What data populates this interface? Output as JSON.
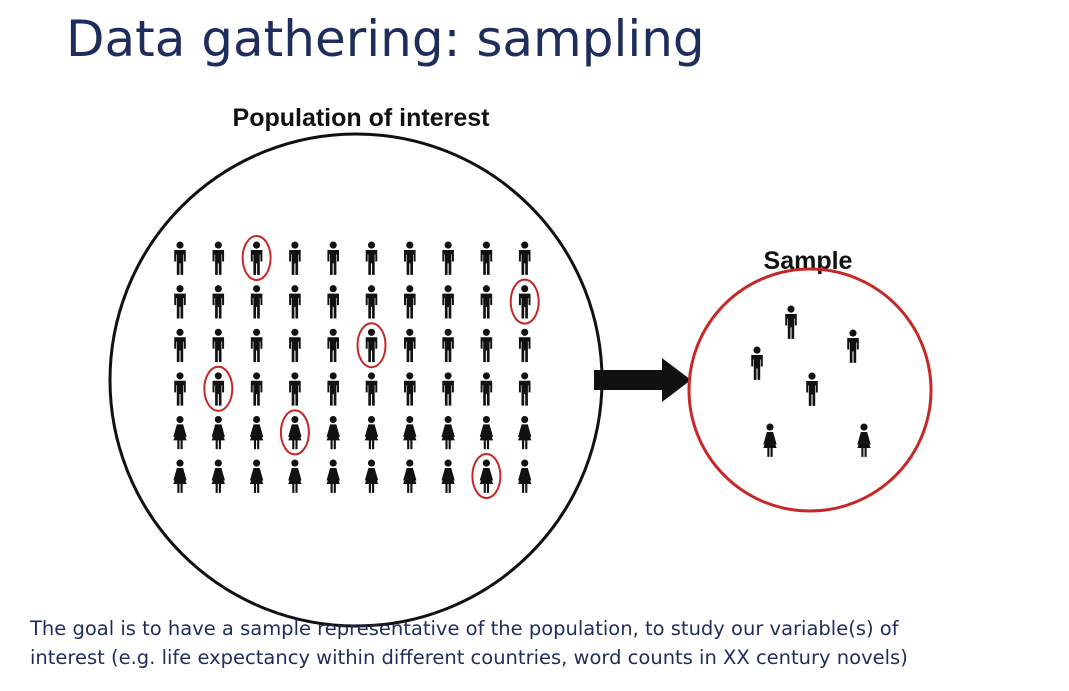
{
  "slide": {
    "title": "Data gathering: sampling",
    "caption_line1": "The goal is to have a sample representative of the population, to study our variable(s) of",
    "caption_line2": "interest (e.g. life expectancy within different countries, word counts in XX century novels)"
  },
  "diagram": {
    "population_label": "Population of interest",
    "sample_label": "Sample",
    "population_grid": {
      "columns": 10,
      "rows": [
        "male",
        "male",
        "male",
        "male",
        "female",
        "female"
      ],
      "selected": [
        [
          0,
          2
        ],
        [
          1,
          9
        ],
        [
          2,
          5
        ],
        [
          3,
          1
        ],
        [
          4,
          3
        ],
        [
          5,
          8
        ]
      ]
    },
    "sample_members": [
      "male",
      "male",
      "male",
      "male",
      "female",
      "female"
    ],
    "icons": {
      "male": "male-person-icon",
      "female": "female-person-icon",
      "arrow": "right-arrow-icon"
    },
    "colors": {
      "title": "#1f2d5c",
      "figure": "#111111",
      "highlight": "#c62828",
      "population_circle": "#111111",
      "sample_circle": "#c62828"
    }
  }
}
